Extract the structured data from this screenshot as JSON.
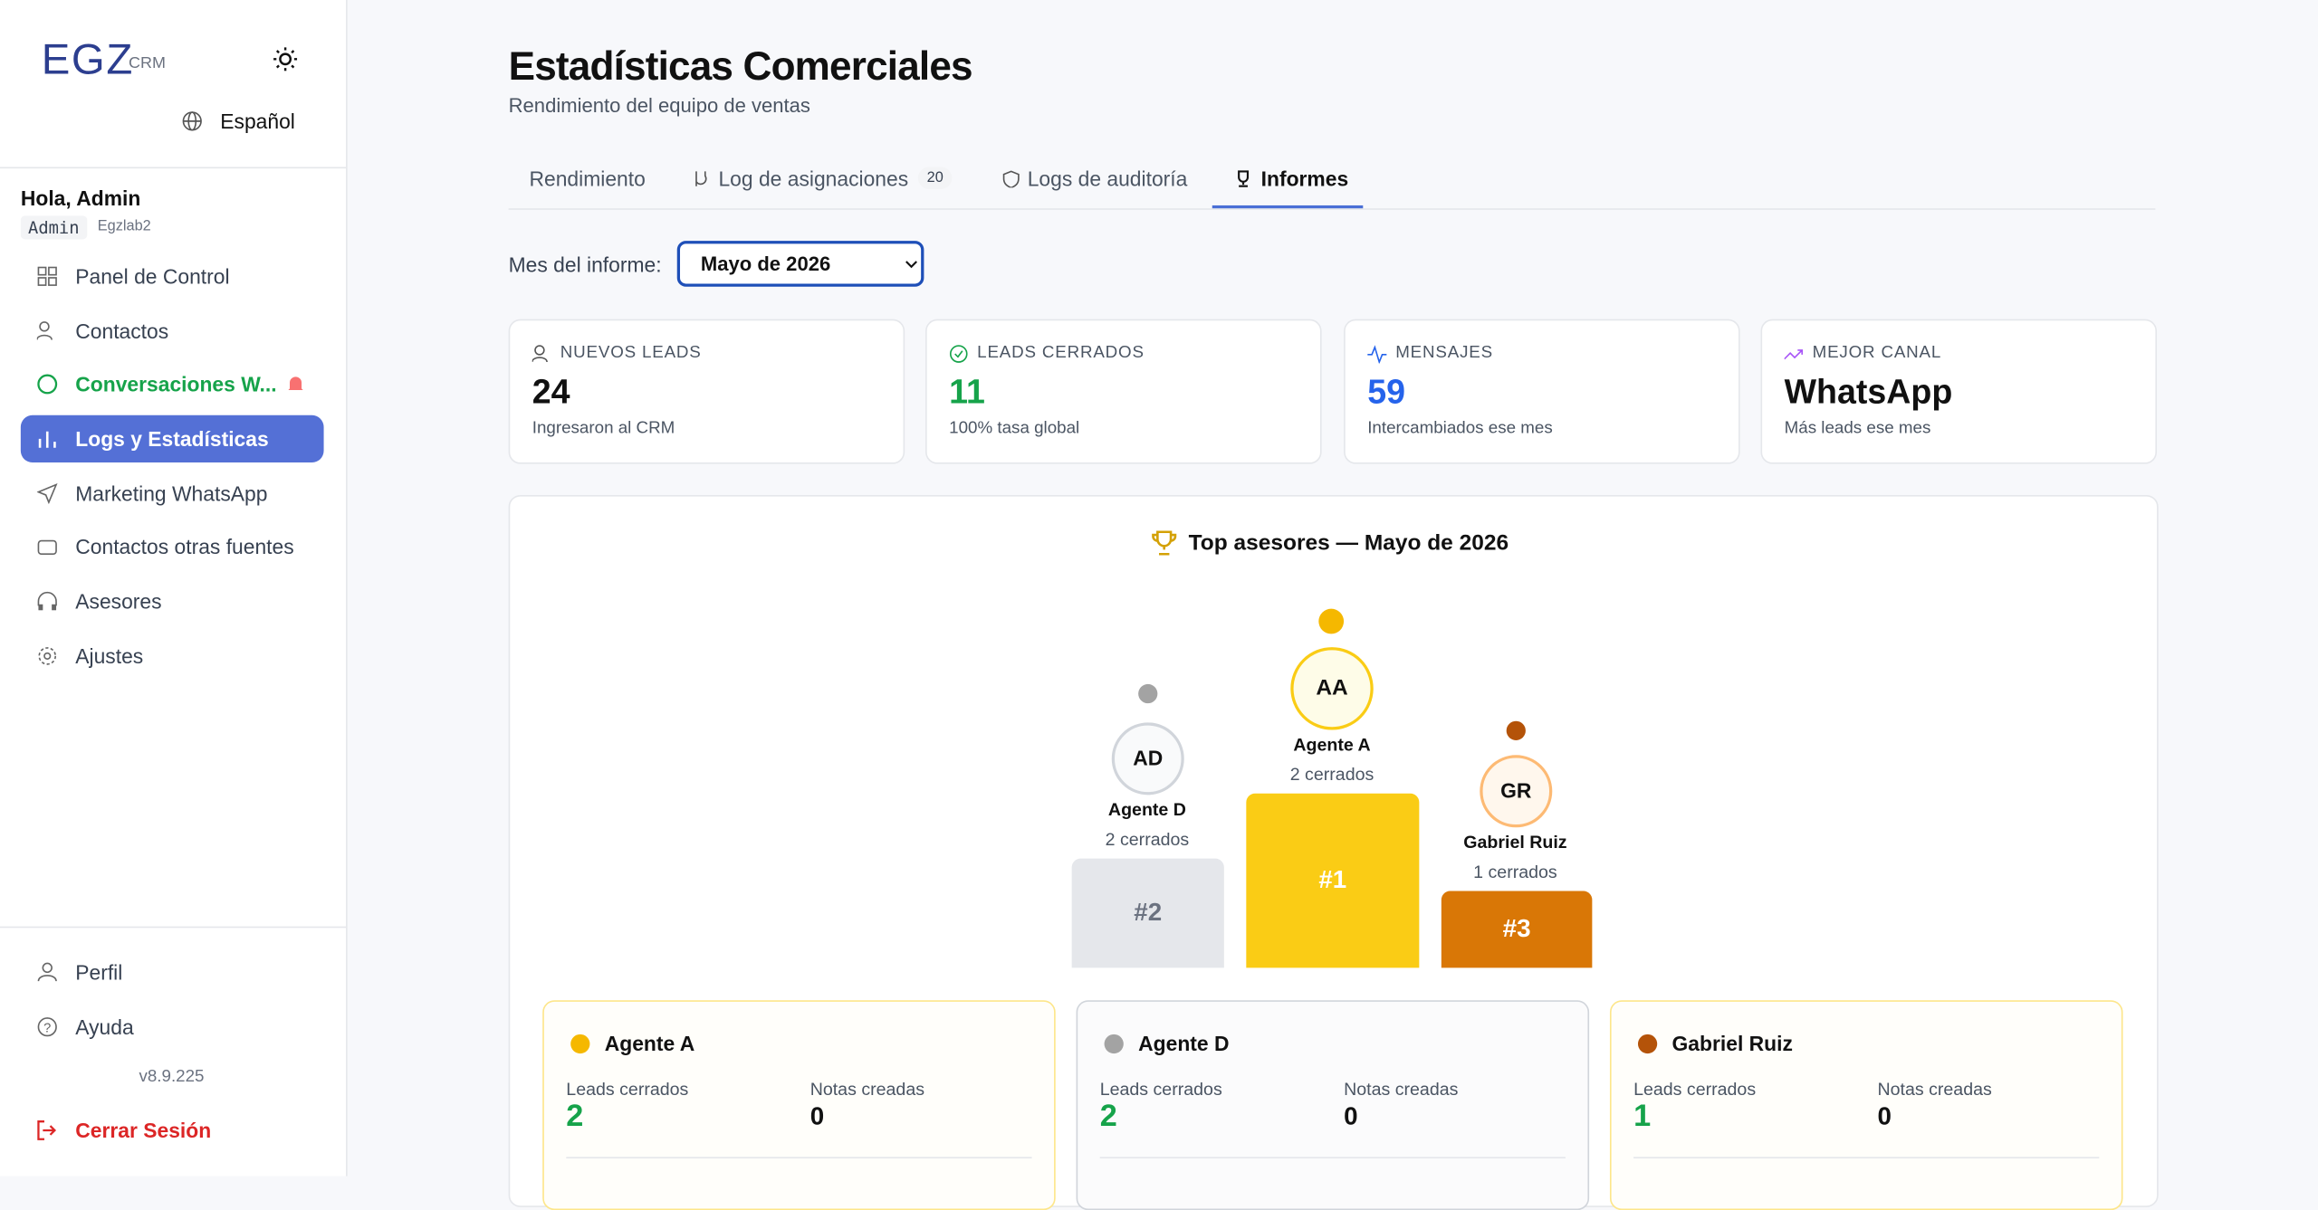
{
  "sidebar": {
    "logo": "EGZ",
    "logo_sub": "CRM",
    "language": "Español",
    "greeting": "Hola, Admin",
    "role": "Admin",
    "org": "Egzlab2",
    "nav": [
      "Panel de Control",
      "Contactos",
      "Conversaciones W...",
      "Logs y Estadísticas",
      "Marketing WhatsApp",
      "Contactos otras fuentes",
      "Asesores",
      "Ajustes"
    ],
    "footer": [
      "Perfil",
      "Ayuda"
    ],
    "version": "v8.9.225",
    "logout": "Cerrar Sesión"
  },
  "header": {
    "title": "Estadísticas Comerciales",
    "subtitle": "Rendimiento del equipo de ventas"
  },
  "tabs": [
    {
      "label": "Rendimiento"
    },
    {
      "label": "Log de asignaciones",
      "badge": "20"
    },
    {
      "label": "Logs de auditoría"
    },
    {
      "label": "Informes",
      "active": true
    }
  ],
  "report_month": {
    "label": "Mes del informe:",
    "value": "Mayo de 2026"
  },
  "stats": [
    {
      "label": "NUEVOS LEADS",
      "value": "24",
      "note": "Ingresaron al CRM"
    },
    {
      "label": "LEADS CERRADOS",
      "value": "11",
      "note": "100% tasa global"
    },
    {
      "label": "MENSAJES",
      "value": "59",
      "note": "Intercambiados ese mes"
    },
    {
      "label": "MEJOR CANAL",
      "value": "WhatsApp",
      "note": "Más leads ese mes"
    }
  ],
  "podium": {
    "title": "Top asesores — Mayo de 2026",
    "entries": [
      {
        "rank": "#2",
        "initials": "AD",
        "name": "Agente D",
        "closed": "2 cerrados"
      },
      {
        "rank": "#1",
        "initials": "AA",
        "name": "Agente A",
        "closed": "2 cerrados"
      },
      {
        "rank": "#3",
        "initials": "GR",
        "name": "Gabriel Ruiz",
        "closed": "1 cerrados"
      }
    ]
  },
  "cards": [
    {
      "name": "Agente A",
      "leads_label": "Leads cerrados",
      "leads": "2",
      "notes_label": "Notas creadas",
      "notes": "0"
    },
    {
      "name": "Agente D",
      "leads_label": "Leads cerrados",
      "leads": "2",
      "notes_label": "Notas creadas",
      "notes": "0"
    },
    {
      "name": "Gabriel Ruiz",
      "leads_label": "Leads cerrados",
      "leads": "1",
      "notes_label": "Notas creadas",
      "notes": "0"
    }
  ]
}
